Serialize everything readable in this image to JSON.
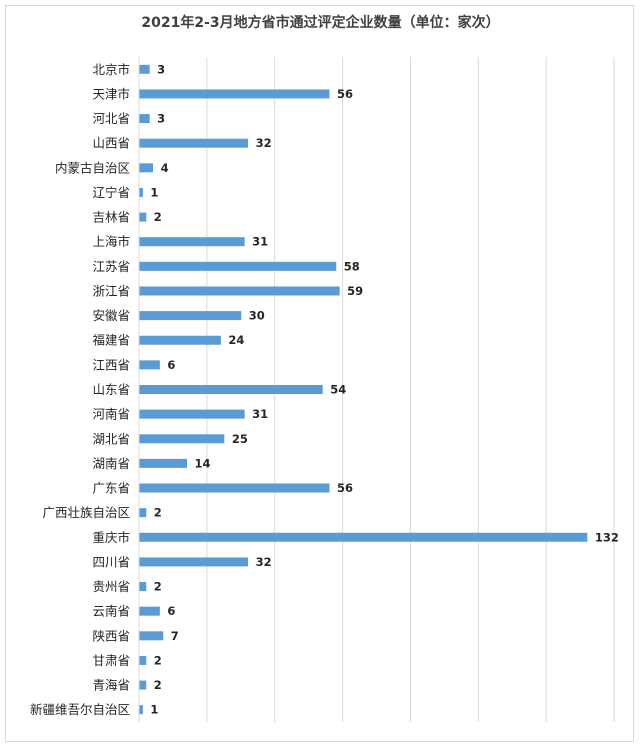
{
  "chart_data": {
    "type": "bar",
    "orientation": "horizontal",
    "title": "2021年2-3月地方省市通过评定企业数量（单位：家次）",
    "categories": [
      "北京市",
      "天津市",
      "河北省",
      "山西省",
      "内蒙古自治区",
      "辽宁省",
      "吉林省",
      "上海市",
      "江苏省",
      "浙江省",
      "安徽省",
      "福建省",
      "江西省",
      "山东省",
      "河南省",
      "湖北省",
      "湖南省",
      "广东省",
      "广西壮族自治区",
      "重庆市",
      "四川省",
      "贵州省",
      "云南省",
      "陕西省",
      "甘肃省",
      "青海省",
      "新疆维吾尔自治区"
    ],
    "values": [
      3,
      56,
      3,
      32,
      4,
      1,
      2,
      31,
      58,
      59,
      30,
      24,
      6,
      54,
      31,
      25,
      14,
      56,
      2,
      132,
      32,
      2,
      6,
      7,
      2,
      2,
      1
    ],
    "xlim": [
      0,
      140
    ],
    "grid": true,
    "data_labels": true,
    "legend": "none",
    "bar_color": "#5b9bd5",
    "grid_color": "#d9d9d9"
  }
}
